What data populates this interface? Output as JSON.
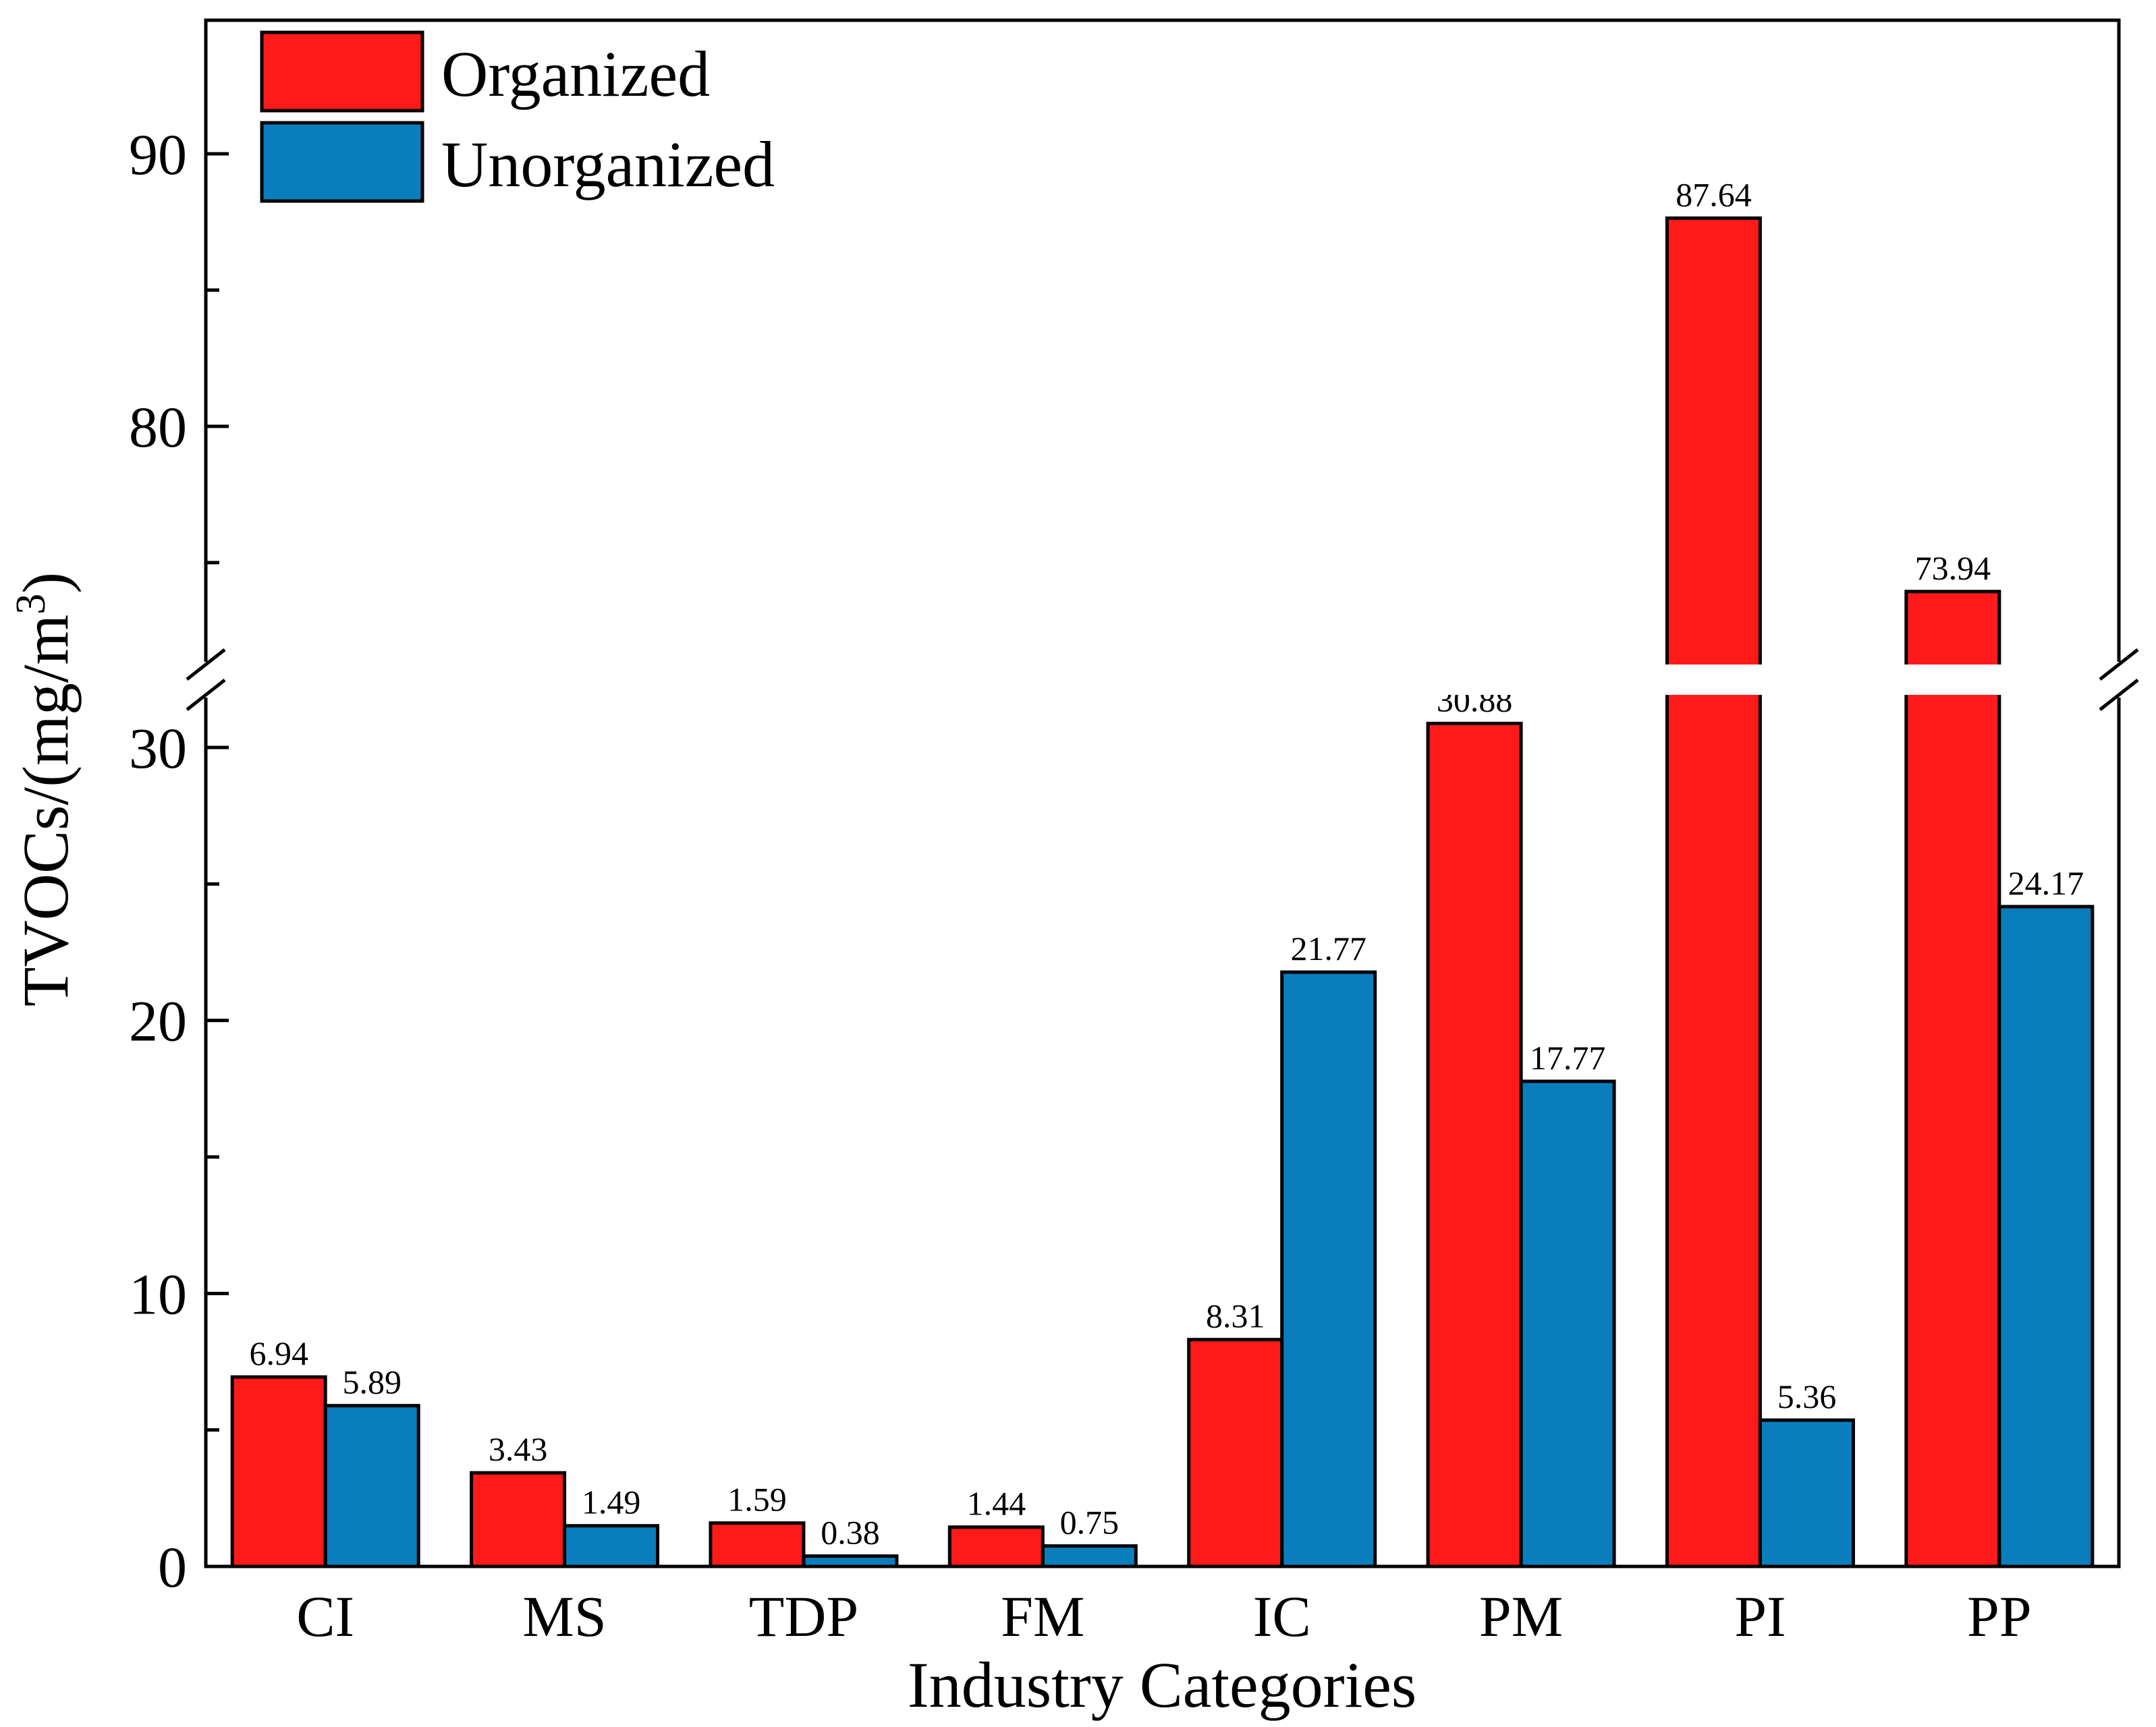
{
  "chart_data": {
    "type": "bar",
    "title": "",
    "xlabel": "Industry Categories",
    "ylabel_main": "TVOCs/(mg/m",
    "ylabel_sup": "3",
    "ylabel_close": ")",
    "categories": [
      "CI",
      "MS",
      "TDP",
      "FM",
      "IC",
      "PM",
      "PI",
      "PP"
    ],
    "series": [
      {
        "name": "Organized",
        "color": "#ff1a1a",
        "values": [
          6.94,
          3.43,
          1.59,
          1.44,
          8.31,
          30.88,
          87.64,
          73.94
        ],
        "labels": [
          "6.94",
          "3.43",
          "1.59",
          "1.44",
          "8.31",
          "30.88",
          "87.64",
          "73.94"
        ]
      },
      {
        "name": "Unorganized",
        "color": "#0a7dbd",
        "values": [
          5.89,
          1.49,
          0.38,
          0.75,
          21.77,
          17.77,
          5.36,
          24.17
        ],
        "labels": [
          "5.89",
          "1.49",
          "0.38",
          "0.75",
          "21.77",
          "17.77",
          "5.36",
          "24.17"
        ]
      }
    ],
    "y_axis": {
      "broken": true,
      "lower_range": [
        0,
        32
      ],
      "upper_range": [
        71,
        95
      ],
      "lower_ticks": [
        0,
        10,
        20,
        30
      ],
      "upper_ticks": [
        80,
        90
      ],
      "lower_tick_labels": [
        "0",
        "10",
        "20",
        "30"
      ],
      "upper_tick_labels": [
        "80",
        "90"
      ]
    },
    "legend_position": "top-left",
    "grid": false
  }
}
